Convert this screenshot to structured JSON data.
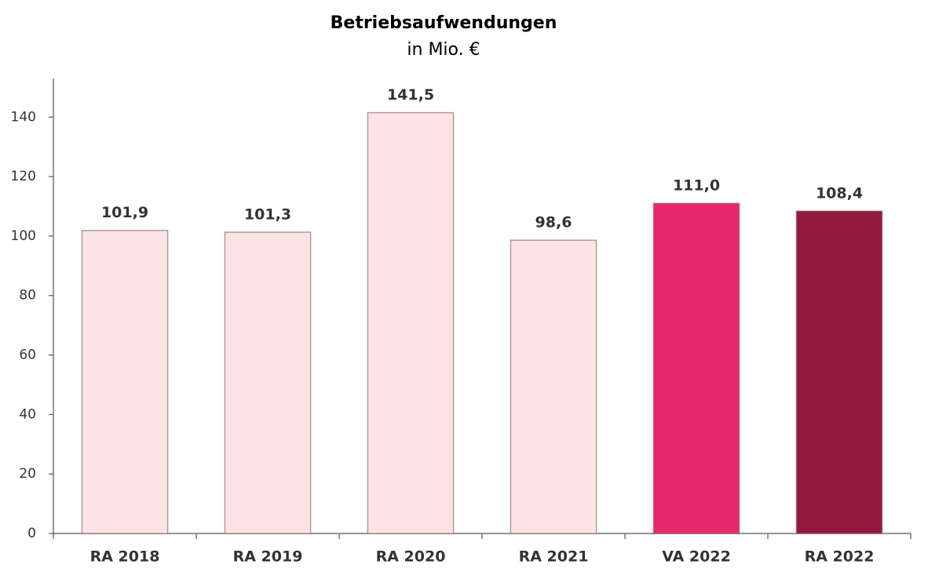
{
  "chart_data": {
    "type": "bar",
    "title": "Betriebsaufwendungen",
    "subtitle": "in Mio. €",
    "categories": [
      "RA 2018",
      "RA 2019",
      "RA 2020",
      "RA 2021",
      "VA 2022",
      "RA 2022"
    ],
    "values": [
      101.9,
      101.3,
      141.5,
      98.6,
      111.0,
      108.4
    ],
    "value_labels": [
      "101,9",
      "101,3",
      "141,5",
      "98,6",
      "111,0",
      "108,4"
    ],
    "colors": [
      "#fde4e4",
      "#fde4e4",
      "#fde4e4",
      "#fde4e4",
      "#e8296b",
      "#931a3c"
    ],
    "ylim": [
      0,
      153
    ],
    "yticks": [
      0,
      20,
      40,
      60,
      80,
      100,
      120,
      140
    ],
    "grid": false
  }
}
